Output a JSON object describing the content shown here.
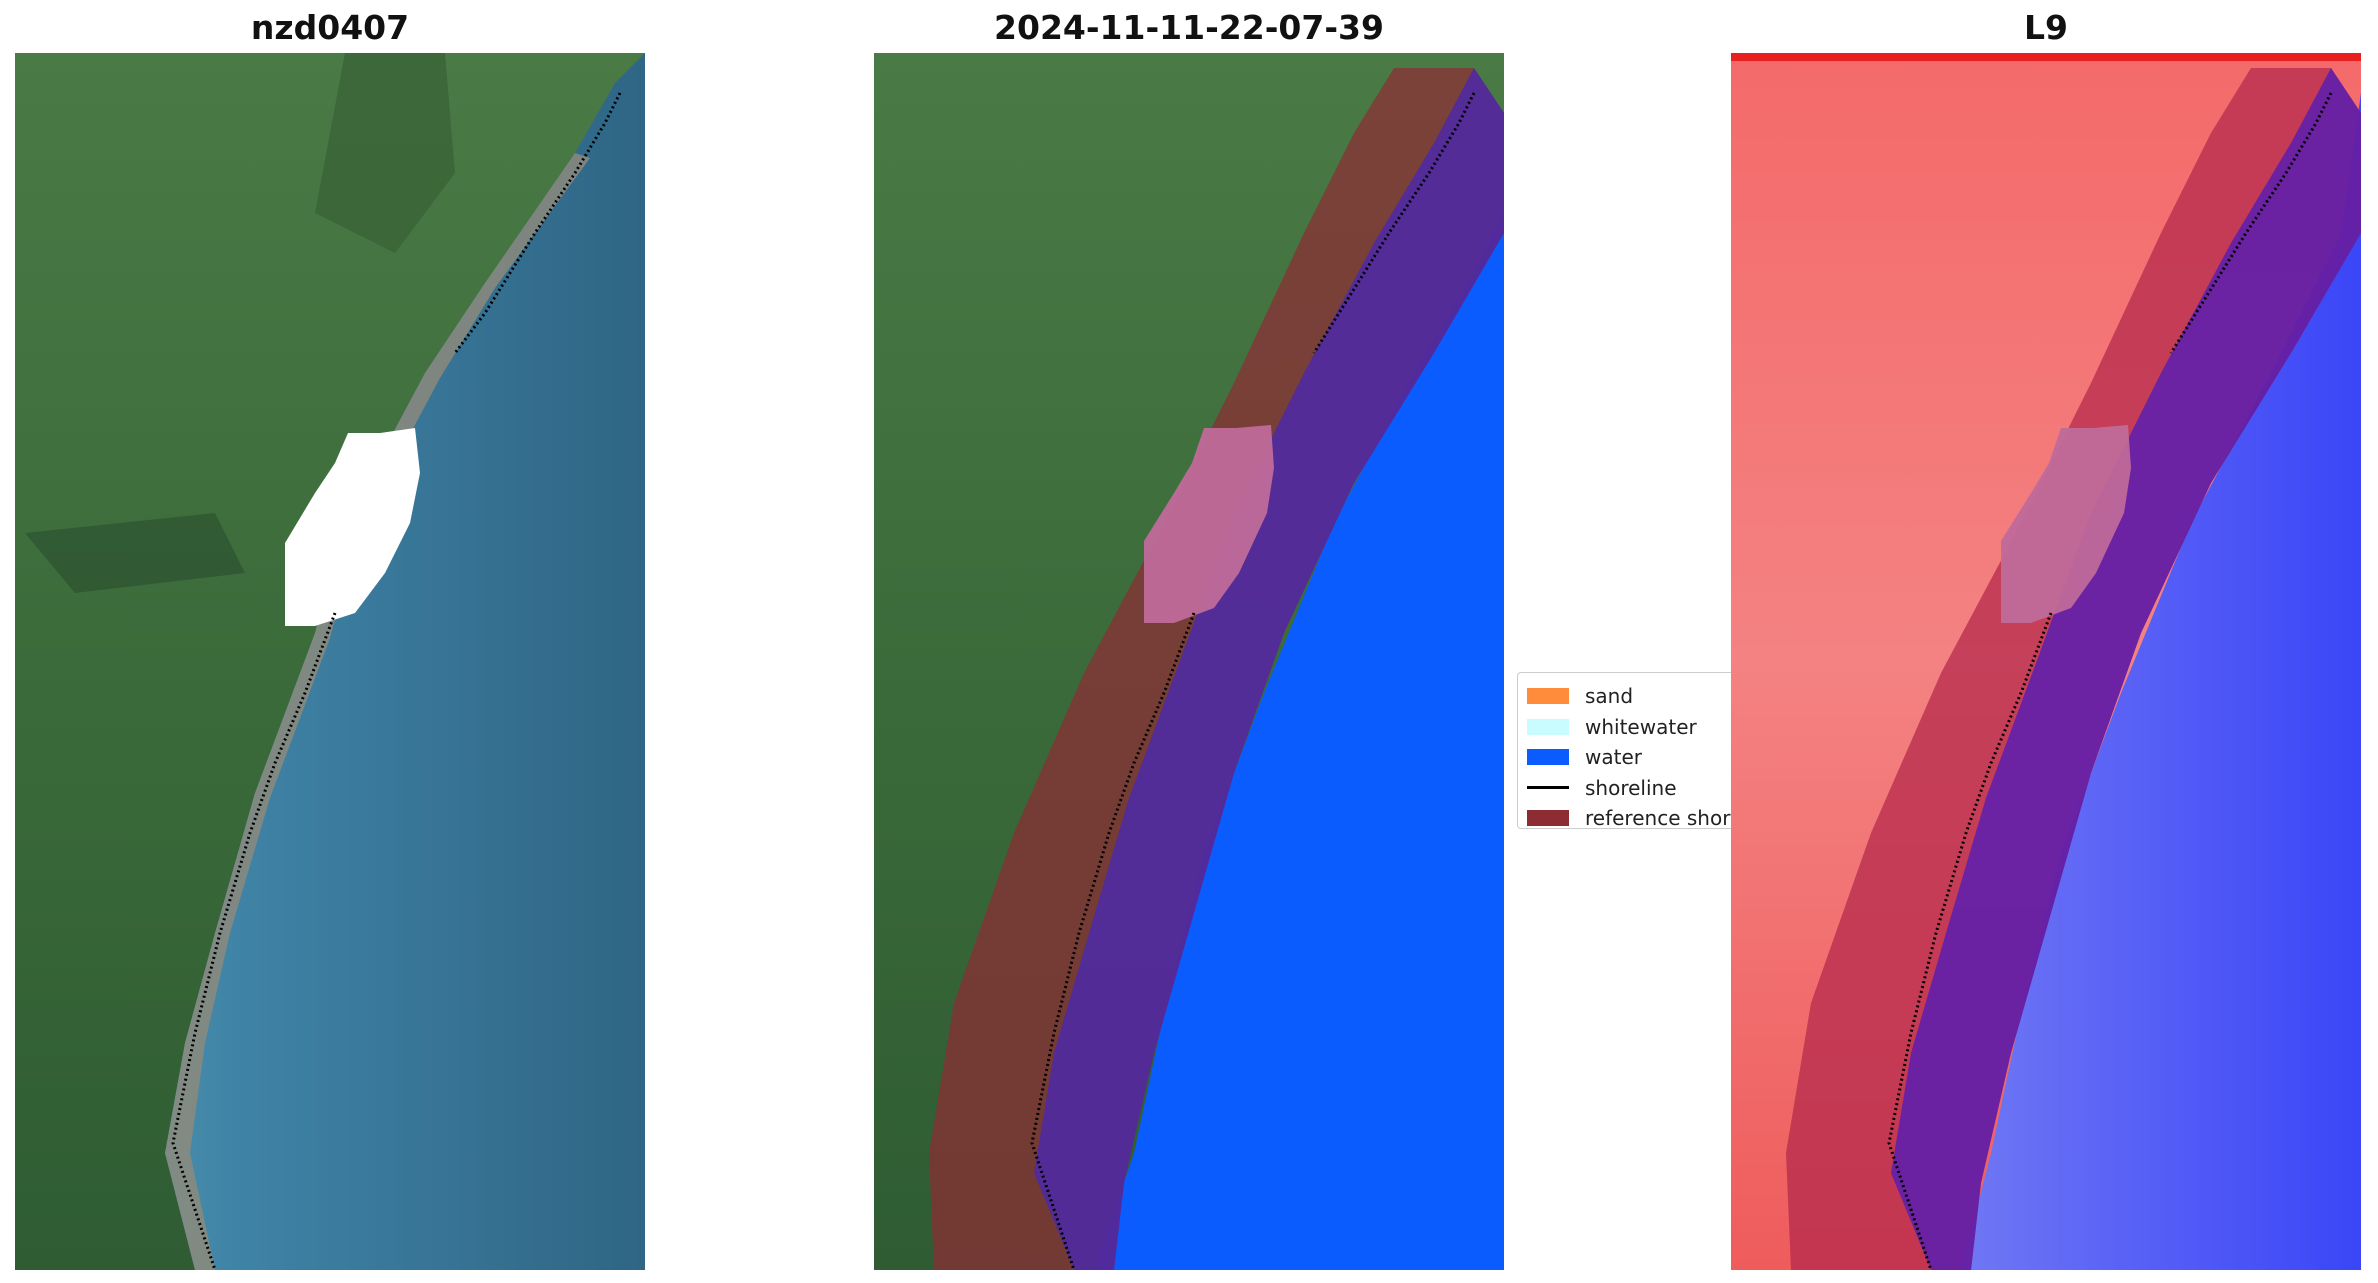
{
  "panels": [
    {
      "title": "nzd0407",
      "content": "RGB satellite image with extracted shoreline"
    },
    {
      "title": "2024-11-11-22-07-39",
      "content": "classified image overlay with reference shoreline buffer"
    },
    {
      "title": "L9",
      "content": "MNDWI index image with shoreline buffer"
    }
  ],
  "legend": {
    "items": [
      {
        "label": "sand",
        "color": "#ff8c3a"
      },
      {
        "label": "whitewater",
        "color": "#c8fcff"
      },
      {
        "label": "water",
        "color": "#0a5cff"
      },
      {
        "label": "shoreline",
        "color": "#000000"
      },
      {
        "label": "reference shor",
        "color": "#8e2c34"
      }
    ]
  },
  "colors": {
    "land": "#3f6f3a",
    "sea": "#3d7da0",
    "water_class": "#0a5cff",
    "buffer": "#8e2c34",
    "index_red": "#f05a5a",
    "index_blue": "#2a3cff"
  }
}
